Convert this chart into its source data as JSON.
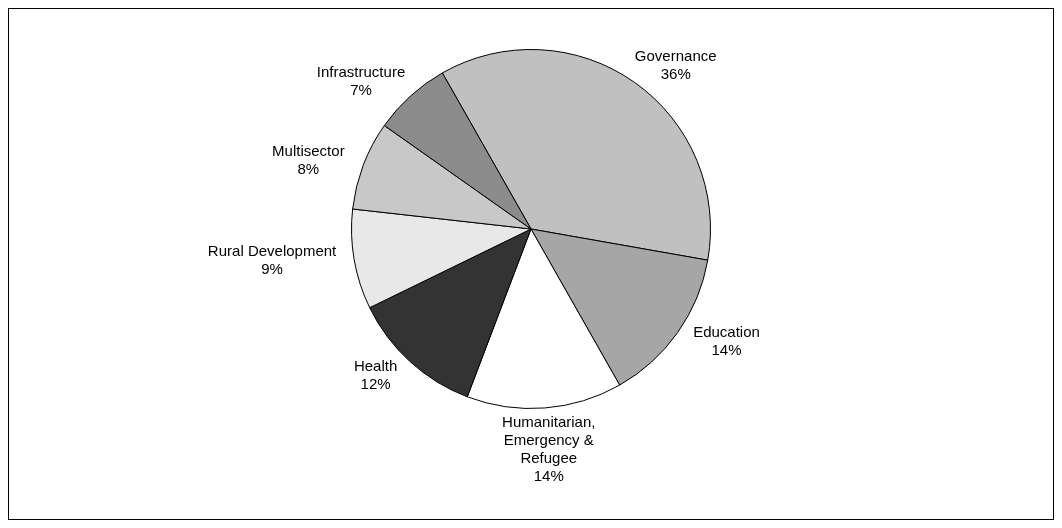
{
  "chart_data": {
    "type": "pie",
    "categories": [
      "Governance",
      "Education",
      "Humanitarian, Emergency & Refugee",
      "Health",
      "Rural Development",
      "Multisector",
      "Infrastructure"
    ],
    "values": [
      36,
      14,
      14,
      12,
      9,
      8,
      7
    ],
    "value_labels": [
      "36%",
      "14%",
      "14%",
      "12%",
      "9%",
      "8%",
      "7%"
    ],
    "colors": [
      "#c0c0c0",
      "#a6a6a6",
      "#ffffff",
      "#333333",
      "#e8e8e8",
      "#c8c8c8",
      "#8c8c8c"
    ],
    "legend": false
  }
}
